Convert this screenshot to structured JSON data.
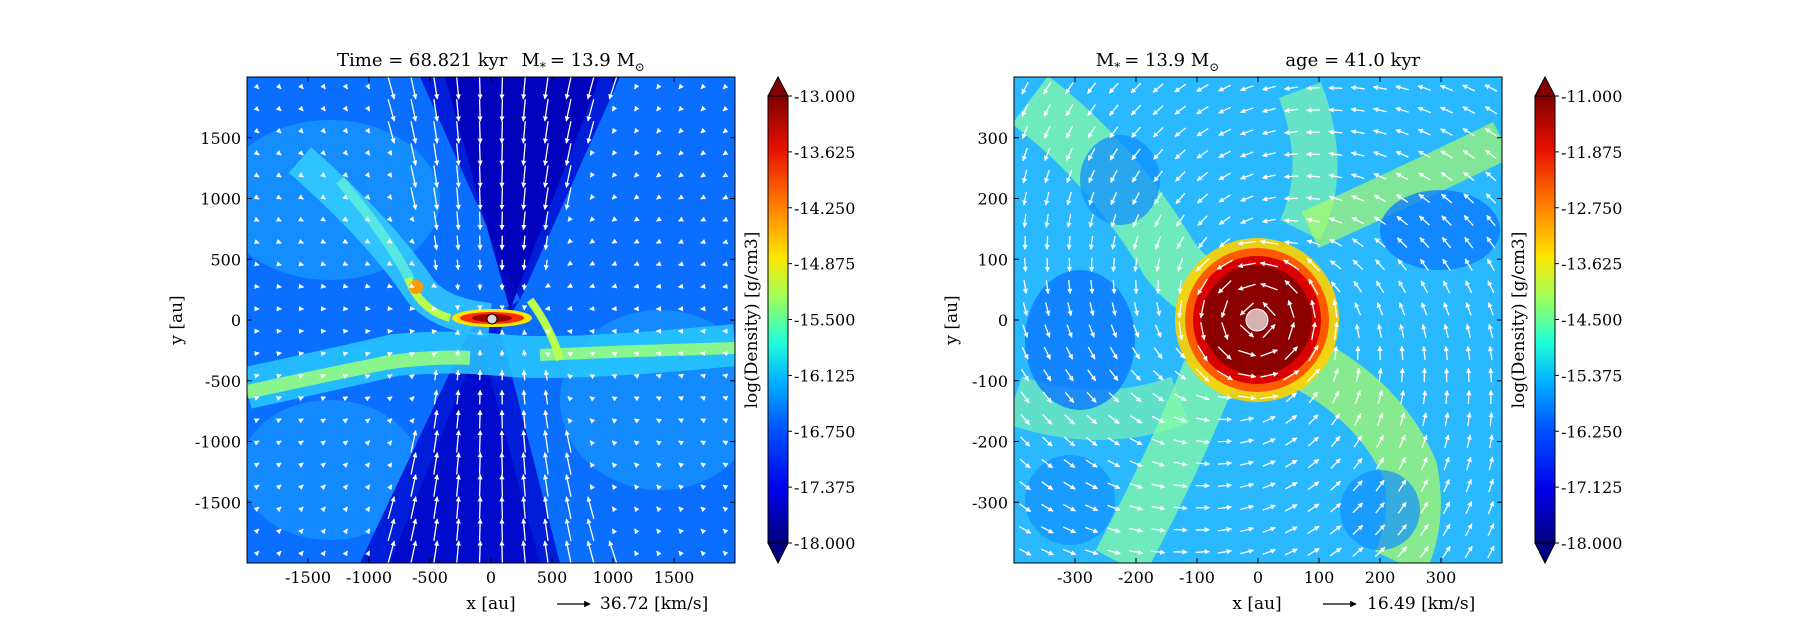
{
  "chart_data": [
    {
      "type": "heatmap",
      "title_parts": {
        "time": "Time = 68.821 kyr",
        "mass": "M",
        "mass_sub": "*",
        "mass_eq": "= 13.9 M",
        "mass_unit_sub": "⊙",
        "age": ""
      },
      "xlabel": "x [au]",
      "ylabel": "y [au]",
      "xlim": [
        -2000,
        2000
      ],
      "ylim": [
        -2000,
        2000
      ],
      "xticks": [
        -1500,
        -1000,
        -500,
        0,
        500,
        1000,
        1500
      ],
      "yticks": [
        -1500,
        -1000,
        -500,
        0,
        500,
        1000,
        1500
      ],
      "velocity_key": {
        "value": 36.72,
        "label": "36.72 [km/s]"
      },
      "colorbar": {
        "label": "log(Density) [g/cm3]",
        "range": [
          -18.0,
          -13.0
        ],
        "ticks": [
          "-13.000",
          "-13.625",
          "-14.250",
          "-14.875",
          "-15.500",
          "-16.125",
          "-16.750",
          "-17.375",
          "-18.000"
        ]
      },
      "features": "bipolar outflow cavity along y axis, dense disk at origin, filaments crossing near y = -400"
    },
    {
      "type": "heatmap",
      "title_parts": {
        "time": "",
        "mass": "M",
        "mass_sub": "*",
        "mass_eq": "= 13.9 M",
        "mass_unit_sub": "⊙",
        "age": "age = 41.0 kyr"
      },
      "xlabel": "x [au]",
      "ylabel": "y [au]",
      "xlim": [
        -400,
        400
      ],
      "ylim": [
        -400,
        400
      ],
      "xticks": [
        -300,
        -200,
        -100,
        0,
        100,
        200,
        300
      ],
      "yticks": [
        -300,
        -200,
        -100,
        0,
        100,
        200,
        300
      ],
      "velocity_key": {
        "value": 16.49,
        "label": "16.49 [km/s]"
      },
      "colorbar": {
        "label": "log(Density) [g/cm3]",
        "range": [
          -18.0,
          -11.0
        ],
        "ticks": [
          "-11.000",
          "-11.875",
          "-12.750",
          "-13.625",
          "-14.500",
          "-15.375",
          "-16.250",
          "-17.125",
          "-18.000"
        ]
      },
      "features": "face-on disk of radius about 100 au around a central star, spiral arms, rotating velocity field"
    }
  ]
}
